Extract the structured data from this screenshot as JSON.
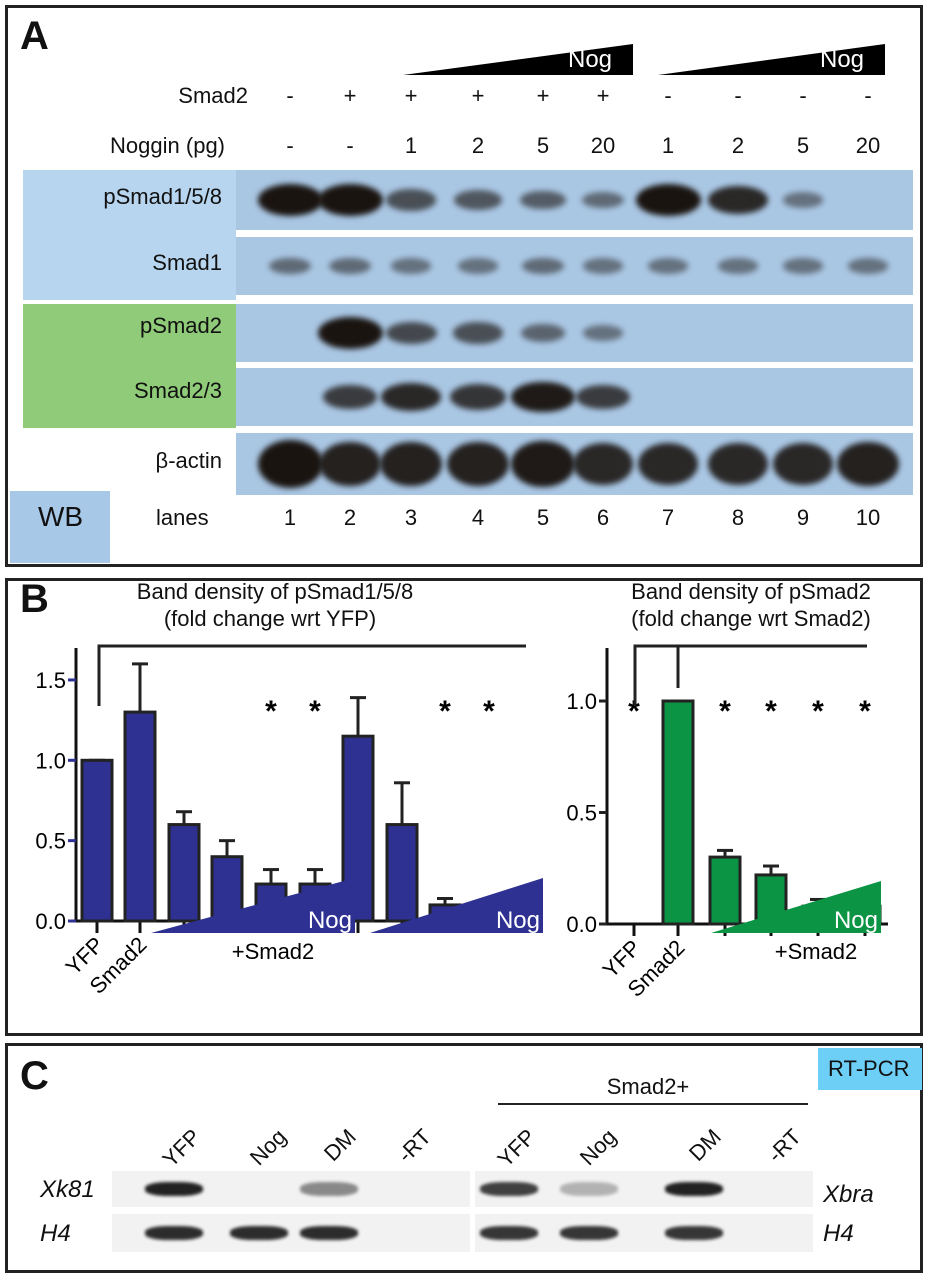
{
  "panelA": {
    "label": "A",
    "nog_label": "Nog",
    "rows": {
      "smad2": "Smad2",
      "noggin": "Noggin (pg)"
    },
    "smad2_values": [
      "-",
      "+",
      "+",
      "+",
      "+",
      "+",
      "-",
      "-",
      "-",
      "-"
    ],
    "noggin_values": [
      "-",
      "-",
      "1",
      "2",
      "5",
      "20",
      "1",
      "2",
      "5",
      "20"
    ],
    "blots": [
      {
        "name": "pSmad1/5/8",
        "color": "#b7d5ee",
        "intensity": [
          1,
          1,
          0.55,
          0.5,
          0.45,
          0.35,
          1,
          0.85,
          0.3,
          0
        ]
      },
      {
        "name": "Smad1",
        "color": "#b7d5ee",
        "intensity": [
          0.35,
          0.35,
          0.3,
          0.3,
          0.35,
          0.3,
          0.3,
          0.3,
          0.3,
          0.3
        ]
      },
      {
        "name": "pSmad2",
        "color": "#8fcb78",
        "intensity": [
          0,
          1,
          0.6,
          0.55,
          0.4,
          0.3,
          0,
          0,
          0,
          0
        ]
      },
      {
        "name": "Smad2/3",
        "color": "#8fcb78",
        "intensity": [
          0,
          0.7,
          0.85,
          0.75,
          0.95,
          0.7,
          0,
          0,
          0,
          0
        ]
      },
      {
        "name": "β-actin",
        "color": "#ffffff",
        "intensity": [
          1,
          0.9,
          0.9,
          0.9,
          0.95,
          0.85,
          0.85,
          0.85,
          0.85,
          0.9
        ]
      }
    ],
    "wb_label": "WB",
    "wb_color": "#a8c8e8",
    "lanes_label": "lanes",
    "lanes": [
      "1",
      "2",
      "3",
      "4",
      "5",
      "6",
      "7",
      "8",
      "9",
      "10"
    ]
  },
  "chart_data": [
    {
      "type": "bar",
      "title": "Band density of pSmad1/5/8",
      "subtitle": "(fold change wrt YFP)",
      "categories": [
        "YFP",
        "Smad2",
        "",
        "",
        "",
        "",
        "",
        "",
        "",
        ""
      ],
      "values": [
        1.0,
        1.3,
        0.6,
        0.4,
        0.23,
        0.23,
        1.15,
        0.6,
        0.1,
        0.02
      ],
      "error_upper": [
        1.0,
        1.6,
        0.68,
        0.5,
        0.32,
        0.32,
        1.39,
        0.86,
        0.14,
        0.02
      ],
      "significance": [
        "",
        "",
        "",
        "",
        "*",
        "*",
        "",
        "",
        "*",
        "*"
      ],
      "yticks": [
        "0.0",
        "0.5",
        "1.0",
        "1.5"
      ],
      "ylim": [
        0,
        1.65
      ],
      "color": "#2e3192",
      "group_labels": [
        {
          "text": "Nog",
          "sub": "+Smad2"
        },
        {
          "text": "Nog",
          "sub": ""
        }
      ]
    },
    {
      "type": "bar",
      "title": "Band density of pSmad2",
      "subtitle": "(fold change wrt Smad2)",
      "categories": [
        "YFP",
        "Smad2",
        "",
        "",
        "",
        ""
      ],
      "values": [
        0,
        1.0,
        0.3,
        0.22,
        0.08,
        0.08
      ],
      "error_upper": [
        0,
        1.0,
        0.33,
        0.26,
        0.11,
        0.1
      ],
      "significance": [
        "*",
        "",
        "*",
        "*",
        "*",
        "*"
      ],
      "yticks": [
        "0.0",
        "0.5",
        "1.0"
      ],
      "ylim": [
        0,
        1.2
      ],
      "color": "#0a9444",
      "group_labels": [
        {
          "text": "Nog",
          "sub": "+Smad2"
        }
      ]
    }
  ],
  "panelB": {
    "label": "B"
  },
  "panelC": {
    "label": "C",
    "rtpcr": "RT-PCR",
    "rtpcr_color": "#6ecff6",
    "smad2plus": "Smad2+",
    "lanes_left": [
      "YFP",
      "Nog",
      "DM",
      "-RT"
    ],
    "lanes_right": [
      "YFP",
      "Nog",
      "DM",
      "-RT"
    ],
    "left_genes": [
      "Xk81",
      "H4"
    ],
    "right_genes": [
      "Xbra",
      "H4"
    ],
    "xk81_intensity": [
      1,
      0,
      0.5,
      0
    ],
    "xbra_intensity": [
      0.85,
      0.3,
      1,
      0
    ],
    "h4_left": [
      0.95,
      0.95,
      0.95,
      0
    ],
    "h4_right": [
      0.9,
      0.9,
      0.9,
      0
    ]
  }
}
